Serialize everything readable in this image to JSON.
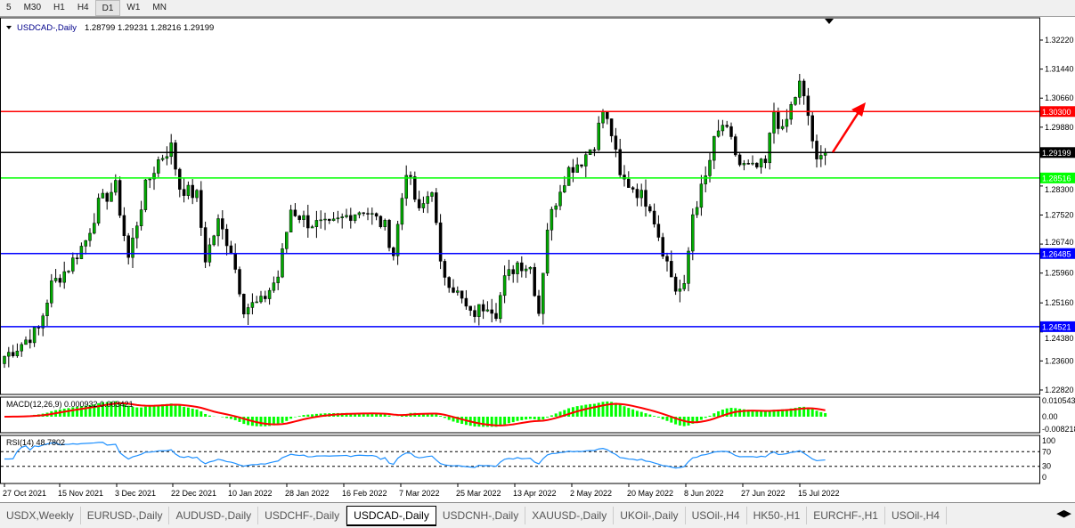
{
  "timeframes": [
    "5",
    "M30",
    "H1",
    "H4",
    "D1",
    "W1",
    "MN"
  ],
  "active_timeframe": "D1",
  "chart_header": {
    "symbol": "USDCAD-,Daily",
    "ohlc": "1.28799 1.29231 1.28216 1.29199"
  },
  "macd_label": "MACD(12,26,9) 0.000932 0.003421",
  "rsi_label": "RSI(14) 48.7802",
  "chart_data": {
    "type": "candlestick",
    "price_axis_ticks": [
      "1.32220",
      "1.31440",
      "1.30660",
      "1.29880",
      "1.28300",
      "1.27520",
      "1.26740",
      "1.25960",
      "1.25160",
      "1.24380",
      "1.23600",
      "1.22820"
    ],
    "price_range": [
      1.2282,
      1.3222
    ],
    "date_ticks": [
      "27 Oct 2021",
      "15 Nov 2021",
      "3 Dec 2021",
      "22 Dec 2021",
      "10 Jan 2022",
      "28 Jan 2022",
      "16 Feb 2022",
      "7 Mar 2022",
      "25 Mar 2022",
      "13 Apr 2022",
      "2 May 2022",
      "20 May 2022",
      "8 Jun 2022",
      "27 Jun 2022",
      "15 Jul 2022"
    ],
    "price_path": [
      [
        0,
        1.2373
      ],
      [
        3,
        1.2397
      ],
      [
        8,
        1.2445
      ],
      [
        11,
        1.2564
      ],
      [
        15,
        1.2612
      ],
      [
        19,
        1.2684
      ],
      [
        22,
        1.278
      ],
      [
        26,
        1.2827
      ],
      [
        29,
        1.2636
      ],
      [
        33,
        1.2827
      ],
      [
        36,
        1.2899
      ],
      [
        39,
        1.2935
      ],
      [
        41,
        1.2827
      ],
      [
        45,
        1.2803
      ],
      [
        47,
        1.2636
      ],
      [
        50,
        1.2732
      ],
      [
        53,
        1.266
      ],
      [
        56,
        1.2504
      ],
      [
        60,
        1.2516
      ],
      [
        64,
        1.2588
      ],
      [
        67,
        1.2768
      ],
      [
        71,
        1.2732
      ],
      [
        76,
        1.272
      ],
      [
        81,
        1.2756
      ],
      [
        84,
        1.2768
      ],
      [
        89,
        1.272
      ],
      [
        91,
        1.2648
      ],
      [
        94,
        1.2875
      ],
      [
        97,
        1.2756
      ],
      [
        100,
        1.2827
      ],
      [
        102,
        1.2612
      ],
      [
        106,
        1.254
      ],
      [
        109,
        1.2481
      ],
      [
        113,
        1.2516
      ],
      [
        115,
        1.2493
      ],
      [
        117,
        1.2576
      ],
      [
        120,
        1.2624
      ],
      [
        123,
        1.2612
      ],
      [
        125,
        1.2493
      ],
      [
        127,
        1.272
      ],
      [
        130,
        1.2827
      ],
      [
        132,
        1.2875
      ],
      [
        135,
        1.2899
      ],
      [
        138,
        1.2947
      ],
      [
        140,
        1.3031
      ],
      [
        142,
        1.2971
      ],
      [
        144,
        1.2851
      ],
      [
        147,
        1.2827
      ],
      [
        151,
        1.278
      ],
      [
        154,
        1.266
      ],
      [
        157,
        1.2552
      ],
      [
        159,
        1.2552
      ],
      [
        161,
        1.2756
      ],
      [
        164,
        1.2851
      ],
      [
        166,
        1.2947
      ],
      [
        168,
        1.2995
      ],
      [
        170,
        1.2947
      ],
      [
        172,
        1.2887
      ],
      [
        175,
        1.2875
      ],
      [
        178,
        1.2887
      ],
      [
        180,
        1.3031
      ],
      [
        182,
        1.2971
      ],
      [
        184,
        1.3043
      ],
      [
        186,
        1.3102
      ],
      [
        188,
        1.3019
      ],
      [
        190,
        1.2887
      ],
      [
        192,
        1.29199
      ]
    ],
    "levels": [
      {
        "price": "1.30300",
        "color": "#ff0000"
      },
      {
        "price": "1.29199",
        "color": "#000000"
      },
      {
        "price": "1.28516",
        "color": "#00ff00"
      },
      {
        "price": "1.26485",
        "color": "#0000ff"
      },
      {
        "price": "1.24521",
        "color": "#0000ff"
      }
    ],
    "bull_color": "#00aa00",
    "bear_color": "#000000",
    "macd": {
      "ticks": [
        "0.010543",
        "0.00",
        "-0.008218"
      ],
      "range": [
        -0.008218,
        0.010543
      ],
      "hist_color": "#00ff00",
      "signal_color": "#ff0000"
    },
    "rsi": {
      "ticks": [
        "100",
        "70",
        "30",
        "0"
      ],
      "levels": [
        70,
        30
      ],
      "color": "#1e90ff"
    },
    "arrow_color": "#ff0000"
  },
  "tabs": [
    "USDX,Weekly",
    "EURUSD-,Daily",
    "AUDUSD-,Daily",
    "USDCHF-,Daily",
    "USDCAD-,Daily",
    "USDCNH-,Daily",
    "XAUUSD-,Daily",
    "UKOil-,Daily",
    "USOil-,H4",
    "HK50-,H1",
    "EURCHF-,H1",
    "USOil-,H4"
  ],
  "active_tab": "USDCAD-,Daily"
}
